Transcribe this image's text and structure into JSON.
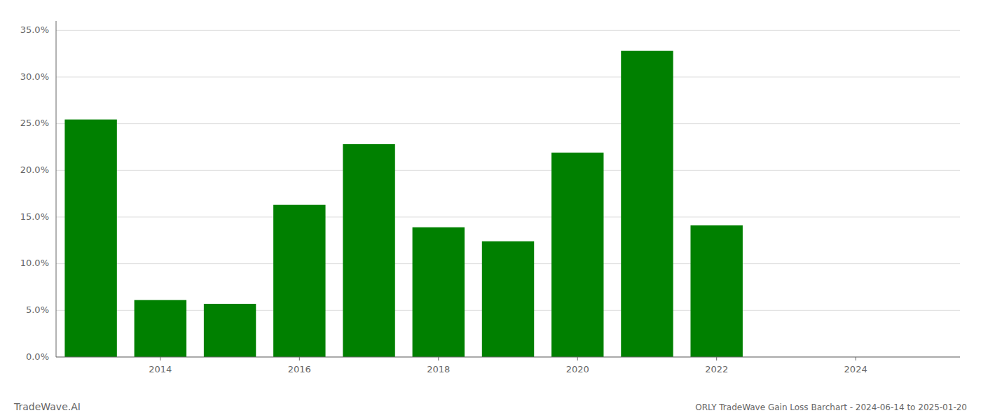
{
  "chart_data": {
    "type": "bar",
    "title": "ORLY TradeWave Gain Loss Barchart - 2024-06-14 to 2025-01-20",
    "annotations": [
      "TradeWave.AI"
    ],
    "x": [
      2013,
      2014,
      2015,
      2016,
      2017,
      2018,
      2019,
      2020,
      2021,
      2022
    ],
    "values": [
      0.2545,
      0.061,
      0.057,
      0.163,
      0.228,
      0.139,
      0.124,
      0.219,
      0.328,
      0.141
    ],
    "color": "#008000",
    "xlim": [
      2012.5,
      2025.5
    ],
    "xticks": [
      2014,
      2016,
      2018,
      2020,
      2022,
      2024
    ],
    "ylim": [
      0,
      0.36
    ],
    "yticks": [
      {
        "value": 0.0,
        "label": "0.0%"
      },
      {
        "value": 0.05,
        "label": "5.0%"
      },
      {
        "value": 0.1,
        "label": "10.0%"
      },
      {
        "value": 0.15,
        "label": "15.0%"
      },
      {
        "value": 0.2,
        "label": "20.0%"
      },
      {
        "value": 0.25,
        "label": "25.0%"
      },
      {
        "value": 0.3,
        "label": "30.0%"
      },
      {
        "value": 0.35,
        "label": "35.0%"
      }
    ],
    "grid": true
  }
}
